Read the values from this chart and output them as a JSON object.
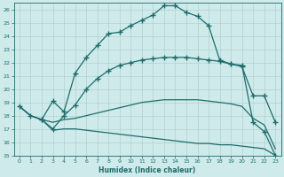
{
  "xlabel": "Humidex (Indice chaleur)",
  "background_color": "#ceeaea",
  "grid_color": "#aacccc",
  "line_color": "#1e6b6b",
  "xlim": [
    -0.5,
    23.5
  ],
  "ylim": [
    15,
    26.5
  ],
  "yticks": [
    15,
    16,
    17,
    18,
    19,
    20,
    21,
    22,
    23,
    24,
    25,
    26
  ],
  "xticks": [
    0,
    1,
    2,
    3,
    4,
    5,
    6,
    7,
    8,
    9,
    10,
    11,
    12,
    13,
    14,
    15,
    16,
    17,
    18,
    19,
    20,
    21,
    22,
    23
  ],
  "series": [
    {
      "x": [
        0,
        1,
        2,
        3,
        4,
        5,
        6,
        7,
        8,
        9,
        10,
        11,
        12,
        13,
        14,
        15,
        16,
        17,
        18,
        19,
        20,
        21,
        22,
        23
      ],
      "y": [
        18.7,
        18.0,
        17.7,
        19.1,
        18.3,
        21.2,
        22.4,
        23.3,
        24.2,
        24.3,
        24.8,
        25.2,
        25.6,
        26.3,
        26.3,
        25.8,
        25.5,
        24.8,
        22.2,
        21.9,
        21.8,
        17.5,
        16.8,
        15.0
      ],
      "marker": "+",
      "markersize": 4,
      "linewidth": 0.9
    },
    {
      "x": [
        2,
        3,
        4,
        5,
        6,
        7,
        8,
        9,
        10,
        11,
        12,
        13,
        14,
        15,
        16,
        17,
        18,
        19,
        20,
        21,
        22,
        23
      ],
      "y": [
        17.7,
        17.0,
        18.0,
        18.8,
        20.0,
        20.8,
        21.4,
        21.8,
        22.0,
        22.2,
        22.3,
        22.4,
        22.4,
        22.4,
        22.3,
        22.2,
        22.1,
        21.9,
        21.7,
        19.5,
        19.5,
        17.5
      ],
      "marker": "+",
      "markersize": 4,
      "linewidth": 0.9
    },
    {
      "x": [
        0,
        1,
        2,
        3,
        4,
        5,
        6,
        7,
        8,
        9,
        10,
        11,
        12,
        13,
        14,
        15,
        16,
        17,
        18,
        19,
        20,
        21,
        22,
        23
      ],
      "y": [
        18.7,
        18.0,
        17.7,
        17.5,
        17.7,
        17.8,
        18.0,
        18.2,
        18.4,
        18.6,
        18.8,
        19.0,
        19.1,
        19.2,
        19.2,
        19.2,
        19.2,
        19.1,
        19.0,
        18.9,
        18.7,
        17.8,
        17.3,
        15.5
      ],
      "marker": null,
      "markersize": 0,
      "linewidth": 0.9
    },
    {
      "x": [
        0,
        1,
        2,
        3,
        4,
        5,
        6,
        7,
        8,
        9,
        10,
        11,
        12,
        13,
        14,
        15,
        16,
        17,
        18,
        19,
        20,
        21,
        22,
        23
      ],
      "y": [
        18.7,
        18.0,
        17.7,
        16.9,
        17.0,
        17.0,
        16.9,
        16.8,
        16.7,
        16.6,
        16.5,
        16.4,
        16.3,
        16.2,
        16.1,
        16.0,
        15.9,
        15.9,
        15.8,
        15.8,
        15.7,
        15.6,
        15.5,
        15.0
      ],
      "marker": null,
      "markersize": 0,
      "linewidth": 0.9
    }
  ]
}
